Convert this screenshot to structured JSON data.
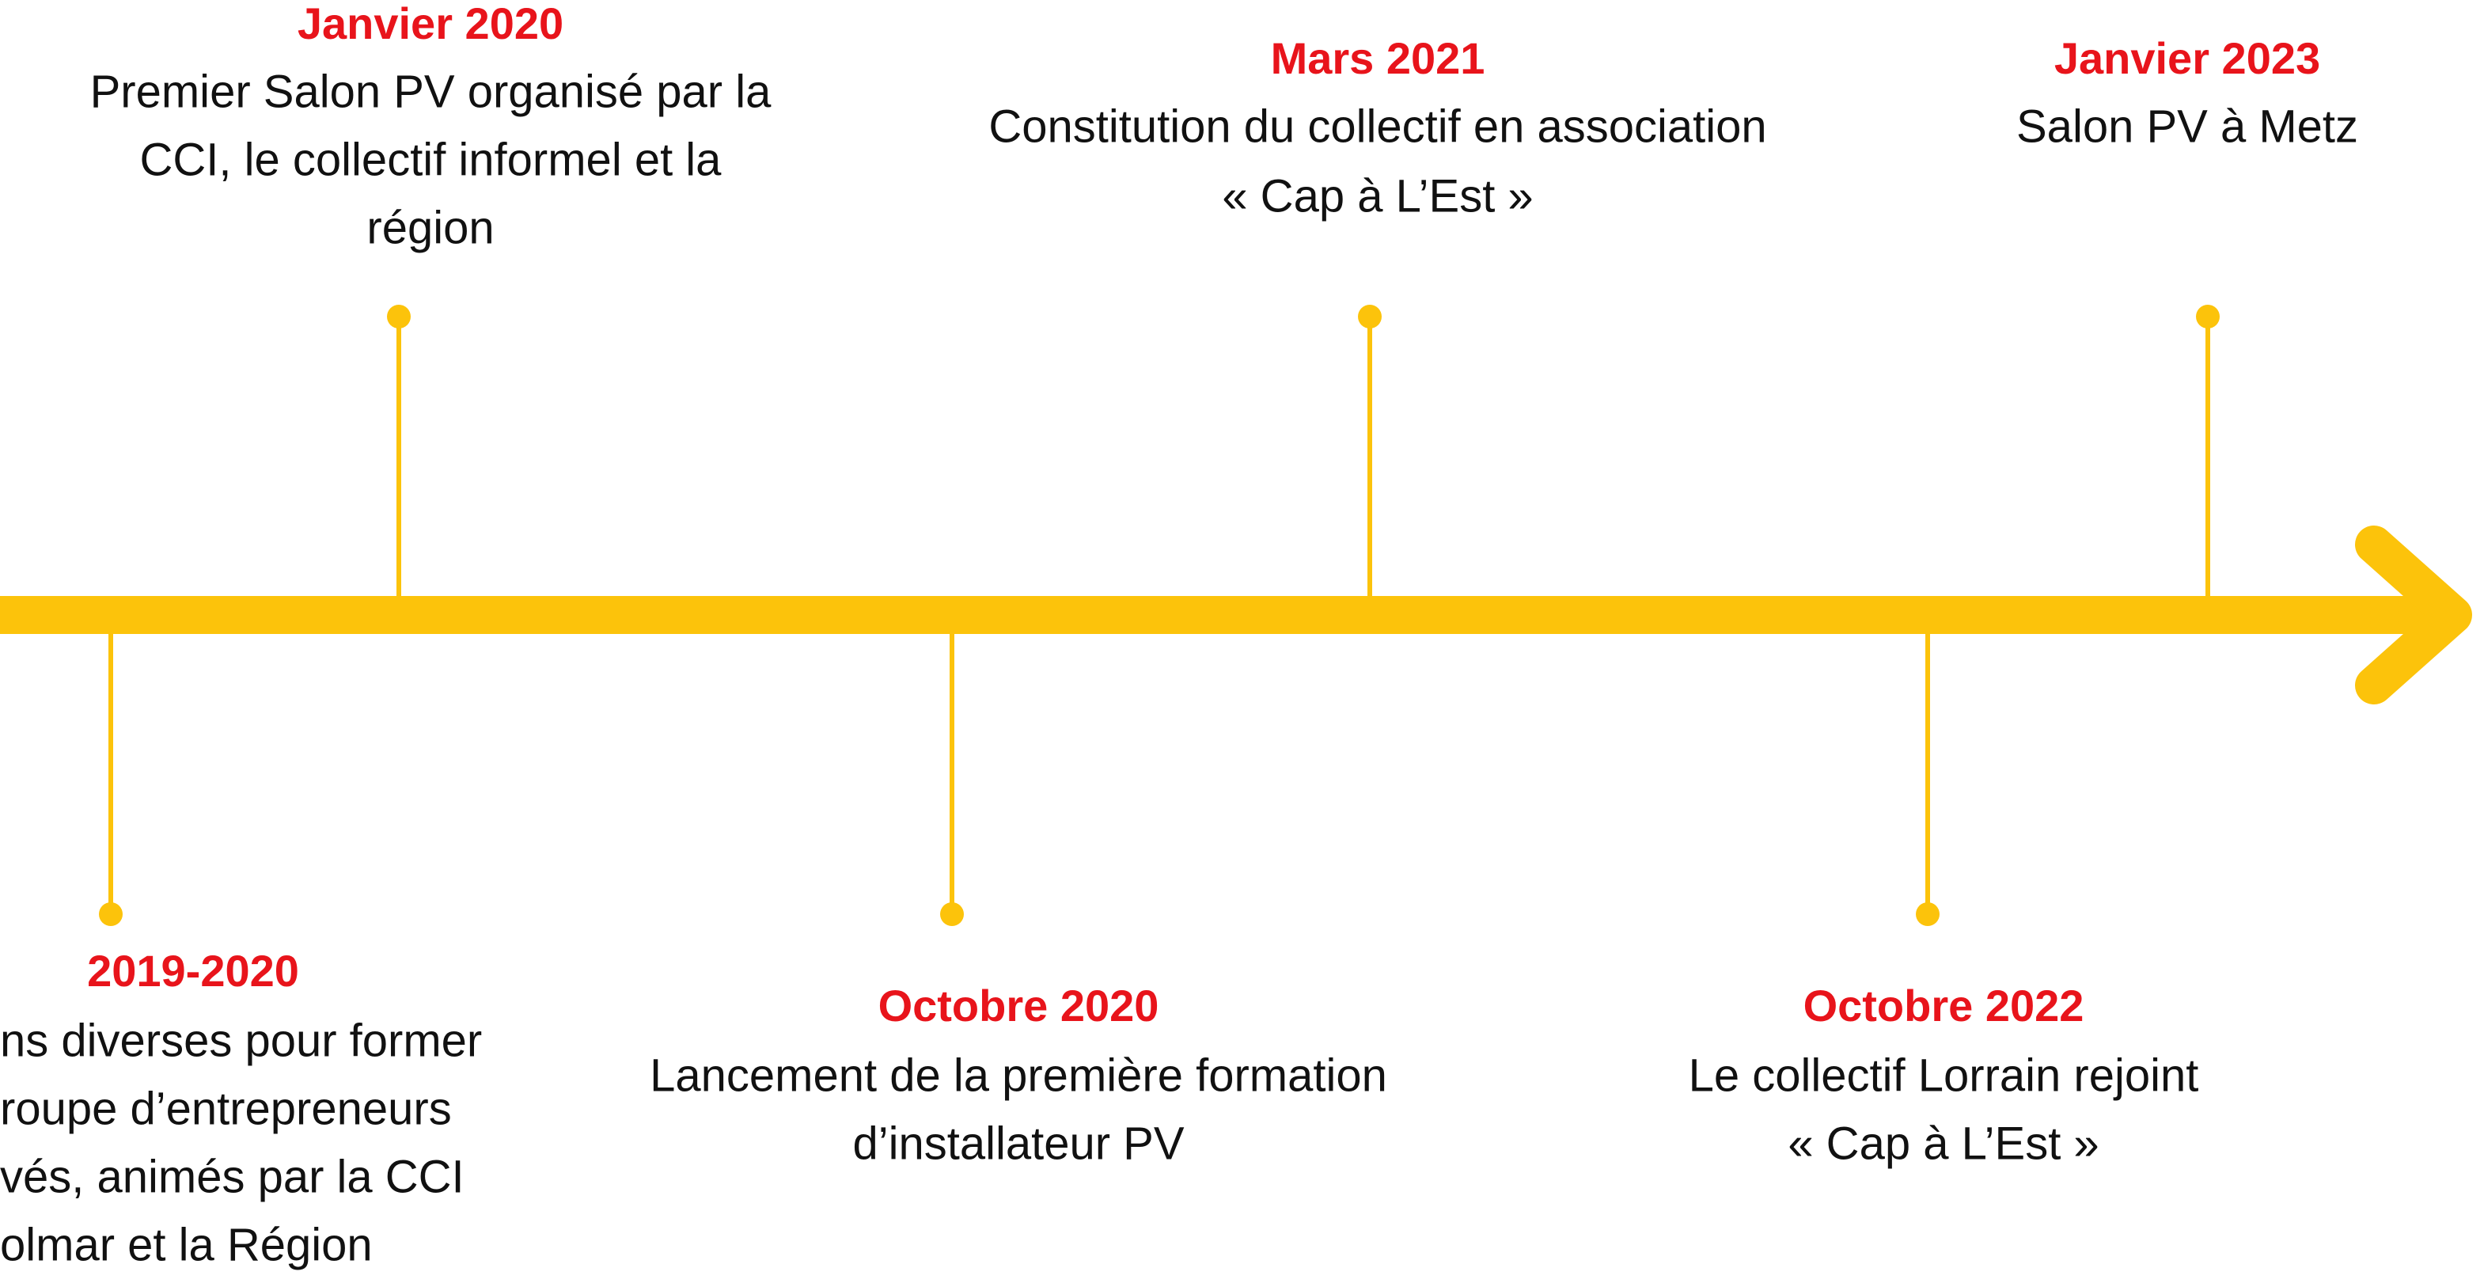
{
  "events": [
    {
      "date": "Janvier 2020",
      "lines": [
        "Premier Salon PV organisé par la",
        "CCI, le collectif informel et la",
        "région"
      ]
    },
    {
      "date": "Mars 2021",
      "lines": [
        "Constitution du collectif en association",
        "« Cap à L’Est »"
      ]
    },
    {
      "date": "Janvier 2023",
      "lines": [
        "Salon PV à Metz"
      ]
    },
    {
      "date": "2019-2020",
      "lines": [
        "ns diverses pour former",
        "roupe d’entrepreneurs",
        "vés, animés par la CCI",
        "olmar et la Région"
      ]
    },
    {
      "date": "Octobre 2020",
      "lines": [
        "Lancement de la première formation",
        "d’installateur PV"
      ]
    },
    {
      "date": "Octobre 2022",
      "lines": [
        "Le collectif Lorrain rejoint",
        "« Cap à L’Est »"
      ]
    }
  ]
}
